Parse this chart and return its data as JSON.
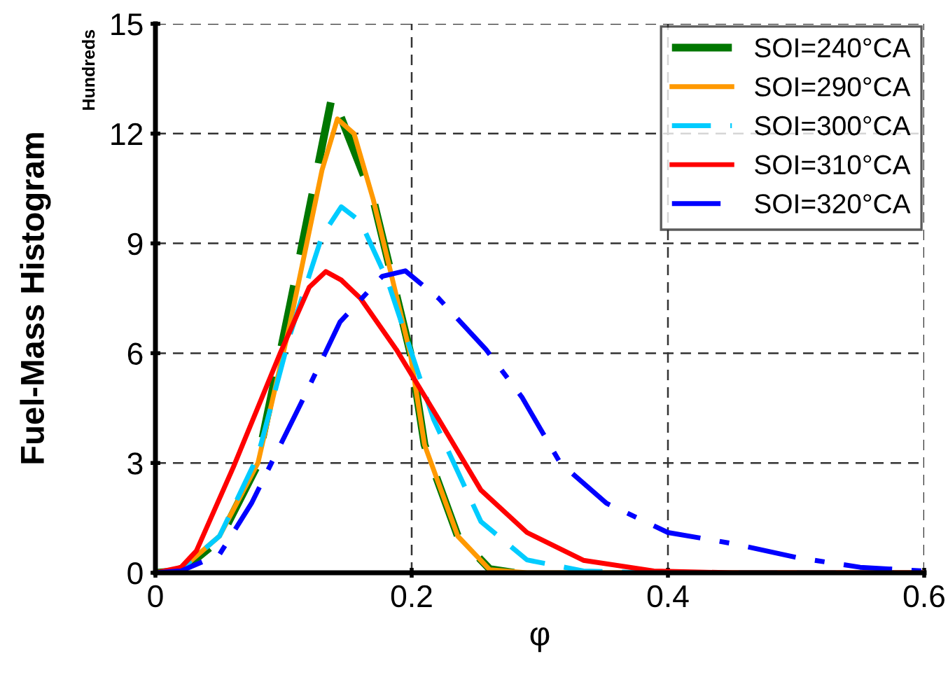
{
  "chart_data": {
    "type": "line",
    "xlabel": "φ",
    "ylabel": "Fuel-Mass Histogram",
    "annotations": [
      "Hundreds"
    ],
    "xlim": [
      0,
      0.6
    ],
    "xticks": [
      0,
      0.2,
      0.4,
      0.6
    ],
    "ylim": [
      0,
      15
    ],
    "yticks": [
      0,
      3,
      6,
      9,
      12,
      15
    ],
    "grid": true,
    "legend": "top right",
    "marker": "none",
    "series": [
      {
        "name": "SOI=240°CA",
        "color": "#007700",
        "line_style": "dashed",
        "x": [
          0,
          0.02,
          0.05,
          0.079,
          0.105,
          0.138,
          0.17,
          0.199,
          0.21,
          0.236,
          0.261,
          0.28
        ],
        "values": [
          0,
          0.05,
          0.9,
          2.9,
          7.3,
          13.05,
          10.2,
          6.0,
          3.5,
          1.0,
          0.1,
          0
        ]
      },
      {
        "name": "SOI=290°CA",
        "color": "#ff9900",
        "line_style": "solid",
        "x": [
          0,
          0.02,
          0.05,
          0.08,
          0.105,
          0.13,
          0.142,
          0.155,
          0.17,
          0.199,
          0.21,
          0.236,
          0.261,
          0.29,
          0.35,
          0.6
        ],
        "values": [
          0,
          0.1,
          1.0,
          3.0,
          6.8,
          11.0,
          12.4,
          12.0,
          10.2,
          5.97,
          3.5,
          1.0,
          0.08,
          0,
          0,
          0
        ]
      },
      {
        "name": "SOI=300°CA",
        "color": "#00ccff",
        "line_style": "dashed",
        "x": [
          0,
          0.02,
          0.05,
          0.08,
          0.105,
          0.13,
          0.145,
          0.16,
          0.181,
          0.217,
          0.254,
          0.29,
          0.334,
          0.38,
          0.6
        ],
        "values": [
          0,
          0.1,
          1.0,
          3.2,
          6.5,
          9.2,
          10.0,
          9.6,
          8.0,
          4.2,
          1.4,
          0.35,
          0.05,
          0,
          0
        ]
      },
      {
        "name": "SOI=310°CA",
        "color": "#ff0000",
        "line_style": "solid",
        "x": [
          0,
          0.02,
          0.032,
          0.061,
          0.097,
          0.12,
          0.133,
          0.145,
          0.16,
          0.188,
          0.221,
          0.254,
          0.29,
          0.334,
          0.389,
          0.45,
          0.6
        ],
        "values": [
          0,
          0.15,
          0.6,
          2.9,
          5.97,
          7.8,
          8.23,
          8.0,
          7.5,
          6.1,
          4.2,
          2.26,
          1.1,
          0.34,
          0.05,
          0,
          0
        ]
      },
      {
        "name": "SOI=320°CA",
        "color": "#0000ff",
        "line_style": "dashdot",
        "x": [
          0,
          0.02,
          0.05,
          0.075,
          0.116,
          0.144,
          0.177,
          0.195,
          0.221,
          0.258,
          0.286,
          0.316,
          0.352,
          0.4,
          0.45,
          0.5,
          0.55,
          0.6
        ],
        "values": [
          0,
          0.05,
          0.5,
          1.9,
          4.8,
          6.85,
          8.1,
          8.25,
          7.5,
          6.1,
          4.8,
          3.0,
          1.9,
          1.1,
          0.8,
          0.42,
          0.15,
          0.05
        ]
      }
    ]
  }
}
